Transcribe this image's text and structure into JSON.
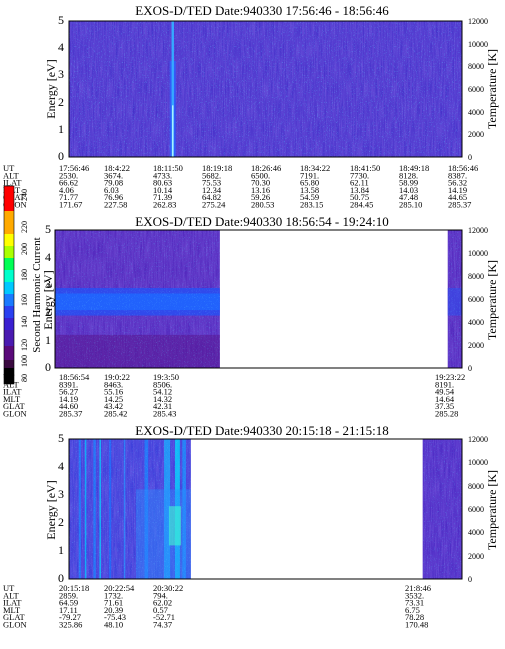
{
  "chart_data": [
    {
      "type": "heatmap",
      "title": "EXOS-D/TED   Date:940330   17:56:46 - 18:56:46",
      "ylabel": "Energy [eV]",
      "y2label": "Temperature [K]",
      "ylim": [
        0,
        5
      ],
      "y2lim": [
        0,
        12000
      ],
      "yticks": [
        "0",
        "1",
        "2",
        "3",
        "4",
        "5"
      ],
      "y2ticks": [
        "0",
        "2000",
        "4000",
        "6000",
        "8000",
        "10000",
        "12000"
      ],
      "coverage": [
        [
          0,
          1
        ]
      ],
      "features": [
        {
          "at": 0.264,
          "emax": 5.0,
          "width": 0.006
        }
      ],
      "orbit": {
        "labels": [
          "UT",
          "ALT",
          "ILAT",
          "MLT",
          "GLAT",
          "GLON"
        ],
        "columns": [
          [
            "17:56:46",
            "2530.",
            "66.62",
            "4.06",
            "71.77",
            "171.67"
          ],
          [
            "18:4:22",
            "3674.",
            "79.08",
            "6.03",
            "76.96",
            "227.58"
          ],
          [
            "18:11:50",
            "4733.",
            "80.63",
            "10.14",
            "71.39",
            "262.83"
          ],
          [
            "18:19:18",
            "5682.",
            "75.53",
            "12.34",
            "64.82",
            "275.24"
          ],
          [
            "18:26:46",
            "6500.",
            "70.30",
            "13.16",
            "59.26",
            "280.53"
          ],
          [
            "18:34:22",
            "7191.",
            "65.80",
            "13.58",
            "54.59",
            "283.15"
          ],
          [
            "18:41:50",
            "7730.",
            "62.11",
            "13.84",
            "50.75",
            "284.45"
          ],
          [
            "18:49:18",
            "8128.",
            "58.99",
            "14.03",
            "47.48",
            "285.10"
          ],
          [
            "18:56:46",
            "8387.",
            "56.32",
            "14.19",
            "44.65",
            "285.37"
          ]
        ]
      }
    },
    {
      "type": "heatmap",
      "title": "EXOS-D/TED   Date:940330   18:56:54 - 19:24:10",
      "ylabel": "Energy [eV]",
      "y2label": "Temperature [K]",
      "ylim": [
        0,
        5
      ],
      "y2lim": [
        0,
        12000
      ],
      "yticks": [
        "0",
        "1",
        "2",
        "3",
        "4",
        "5"
      ],
      "y2ticks": [
        "0",
        "2000",
        "4000",
        "6000",
        "8000",
        "10000",
        "12000"
      ],
      "coverage": [
        [
          0,
          0.405
        ],
        [
          0.965,
          1
        ]
      ],
      "features": [],
      "orbit": {
        "labels": [
          "UT",
          "ALT",
          "ILAT",
          "MLT",
          "GLAT",
          "GLON"
        ],
        "columns": [
          [
            "18:56:54",
            "8391.",
            "56.27",
            "14.19",
            "44.60",
            "285.37"
          ],
          [
            "19:0:22",
            "8463.",
            "55.16",
            "14.25",
            "43.42",
            "285.42"
          ],
          [
            "19:3:50",
            "8506.",
            "54.12",
            "14.32",
            "42.31",
            "285.43"
          ],
          [
            "19:23:22",
            "8191.",
            "49.54",
            "14.64",
            "37.35",
            "285.28"
          ]
        ]
      }
    },
    {
      "type": "heatmap",
      "title": "EXOS-D/TED   Date:940330   20:15:18 - 21:15:18",
      "ylabel": "Energy [eV]",
      "y2label": "Temperature [K]",
      "ylim": [
        0,
        5
      ],
      "y2lim": [
        0,
        12000
      ],
      "yticks": [
        "0",
        "1",
        "2",
        "3",
        "4",
        "5"
      ],
      "y2ticks": [
        "0",
        "2000",
        "4000",
        "6000",
        "8000",
        "10000",
        "12000"
      ],
      "coverage": [
        [
          0,
          0.31
        ],
        [
          0.9,
          1
        ]
      ],
      "features": [],
      "orbit": {
        "labels": [
          "UT",
          "ALT",
          "ILAT",
          "MLT",
          "GLAT",
          "GLON"
        ],
        "columns": [
          [
            "20:15:18",
            "2859.",
            "64.59",
            "17.11",
            "-79.27",
            "325.86"
          ],
          [
            "20:22:54",
            "1732.",
            "71.61",
            "20.39",
            "-75.43",
            "48.10"
          ],
          [
            "20:30:22",
            "794.",
            "62.02",
            "0.57",
            "-52.71",
            "74.37"
          ],
          [
            "21:8:46",
            "3532.",
            "73.31",
            "6.75",
            "78.28",
            "170.48"
          ]
        ]
      }
    }
  ],
  "colorbar": {
    "label": "Second Harmonic Current",
    "ticks": [
      "80",
      "100",
      "120",
      "140",
      "160",
      "180",
      "200",
      "220",
      "240"
    ],
    "colors": [
      "#000000",
      "#5a0a7a",
      "#3a14d8",
      "#1a78ff",
      "#00d8ff",
      "#00ff66",
      "#ffff00",
      "#ff8800",
      "#ff0000"
    ]
  }
}
